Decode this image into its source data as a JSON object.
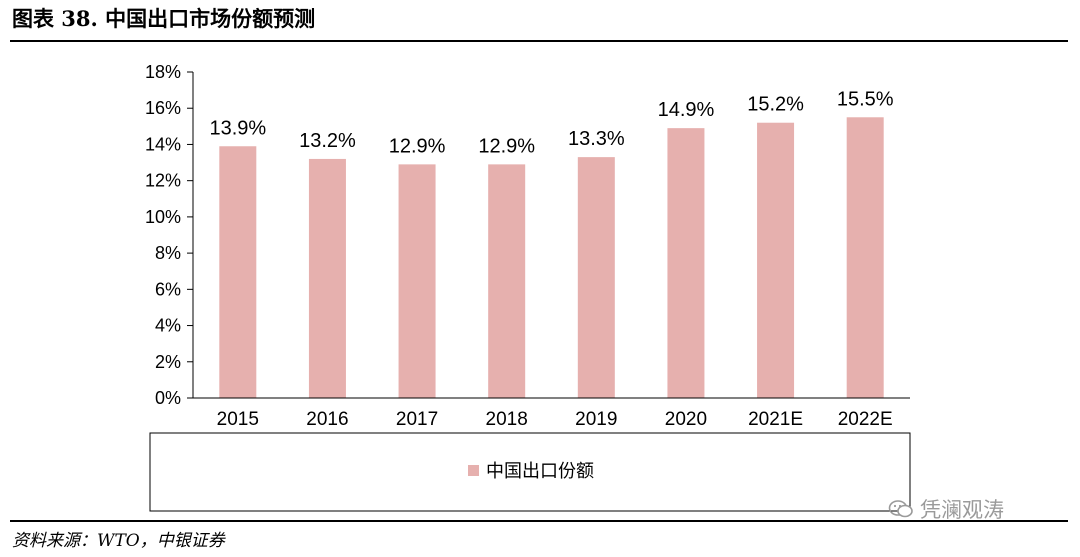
{
  "title": "图表 38. 中国出口市场份额预测",
  "source": "资料来源：WTO，中银证券",
  "watermark": "凭澜观涛",
  "colors": {
    "bar": "#e6b0ae",
    "axis": "#000000"
  },
  "chart_data": {
    "type": "bar",
    "categories": [
      "2015",
      "2016",
      "2017",
      "2018",
      "2019",
      "2020",
      "2021E",
      "2022E"
    ],
    "series": [
      {
        "name": "中国出口份额",
        "values": [
          13.9,
          13.2,
          12.9,
          12.9,
          13.3,
          14.9,
          15.2,
          15.5
        ]
      }
    ],
    "data_labels": [
      "13.9%",
      "13.2%",
      "12.9%",
      "12.9%",
      "13.3%",
      "14.9%",
      "15.2%",
      "15.5%"
    ],
    "yticks": [
      "0%",
      "2%",
      "4%",
      "6%",
      "8%",
      "10%",
      "12%",
      "14%",
      "16%",
      "18%"
    ],
    "ylim": [
      0,
      18
    ],
    "ytick_step": 2,
    "grid": false,
    "legend": "bottom"
  }
}
